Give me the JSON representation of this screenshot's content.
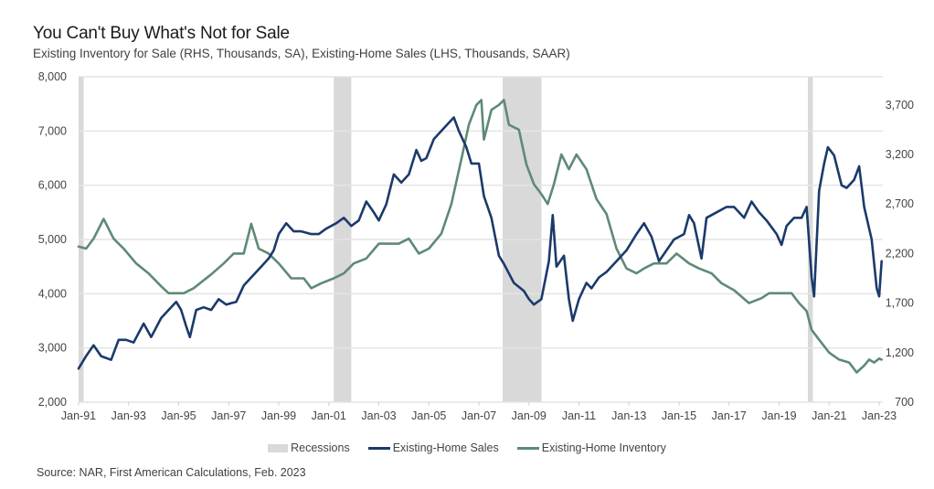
{
  "chart_data": {
    "type": "line",
    "title": "You Can't Buy What's Not for Sale",
    "subtitle": "Existing Inventory for Sale (RHS, Thousands, SA), Existing-Home Sales (LHS, Thousands, SAAR)",
    "source": "Source: NAR, First American Calculations, Feb. 2023",
    "xlabel": "",
    "x_range": [
      1991.0,
      2023.0
    ],
    "x_ticks": [
      {
        "value": 1991,
        "label": "Jan-91"
      },
      {
        "value": 1993,
        "label": "Jan-93"
      },
      {
        "value": 1995,
        "label": "Jan-95"
      },
      {
        "value": 1997,
        "label": "Jan-97"
      },
      {
        "value": 1999,
        "label": "Jan-99"
      },
      {
        "value": 2001,
        "label": "Jan-01"
      },
      {
        "value": 2003,
        "label": "Jan-03"
      },
      {
        "value": 2005,
        "label": "Jan-05"
      },
      {
        "value": 2007,
        "label": "Jan-07"
      },
      {
        "value": 2009,
        "label": "Jan-09"
      },
      {
        "value": 2011,
        "label": "Jan-11"
      },
      {
        "value": 2013,
        "label": "Jan-13"
      },
      {
        "value": 2015,
        "label": "Jan-15"
      },
      {
        "value": 2017,
        "label": "Jan-17"
      },
      {
        "value": 2019,
        "label": "Jan-19"
      },
      {
        "value": 2021,
        "label": "Jan-21"
      },
      {
        "value": 2023,
        "label": "Jan-23"
      }
    ],
    "y_left": {
      "label": "Existing-Home Sales (LHS, Thousands, SAAR)",
      "range": [
        2000,
        8000
      ],
      "ticks": [
        "2,000",
        "3,000",
        "4,000",
        "5,000",
        "6,000",
        "7,000",
        "8,000"
      ],
      "tick_values": [
        2000,
        3000,
        4000,
        5000,
        6000,
        7000,
        8000
      ]
    },
    "y_right": {
      "label": "Existing Inventory for Sale (RHS, Thousands, SA)",
      "range": [
        700,
        3984
      ],
      "ticks": [
        "700",
        "1,200",
        "1,700",
        "2,200",
        "2,700",
        "3,200",
        "3,700"
      ],
      "tick_values": [
        700,
        1200,
        1700,
        2200,
        2700,
        3200,
        3700
      ]
    },
    "grid": true,
    "legend_position": "bottom",
    "legend": [
      "Recessions",
      "Existing-Home Sales",
      "Existing-Home Inventory"
    ],
    "recessions": [
      [
        1991.0,
        1991.2
      ],
      [
        2001.2,
        2001.9
      ],
      [
        2007.95,
        2009.5
      ],
      [
        2020.15,
        2020.35
      ]
    ],
    "colors": {
      "sales": "#1b3a6b",
      "inventory": "#5e8a76",
      "recession": "#d9d9d9",
      "grid": "#e4e4e4"
    },
    "series": [
      {
        "name": "Existing-Home Sales",
        "axis": "left",
        "x": [
          1991.0,
          1991.3,
          1991.6,
          1991.9,
          1992.3,
          1992.6,
          1992.9,
          1993.2,
          1993.6,
          1993.9,
          1994.3,
          1994.6,
          1994.9,
          1995.1,
          1995.3,
          1995.45,
          1995.7,
          1996.0,
          1996.3,
          1996.6,
          1996.9,
          1997.3,
          1997.6,
          1997.9,
          1998.3,
          1998.6,
          1998.8,
          1999.0,
          1999.3,
          1999.6,
          1999.9,
          2000.3,
          2000.6,
          2000.9,
          2001.3,
          2001.6,
          2001.9,
          2002.2,
          2002.5,
          2002.8,
          2003.0,
          2003.3,
          2003.6,
          2003.9,
          2004.2,
          2004.5,
          2004.7,
          2004.9,
          2005.2,
          2005.5,
          2005.8,
          2006.0,
          2006.2,
          2006.5,
          2006.7,
          2007.0,
          2007.2,
          2007.5,
          2007.8,
          2008.0,
          2008.4,
          2008.8,
          2009.0,
          2009.2,
          2009.5,
          2009.8,
          2009.95,
          2010.1,
          2010.4,
          2010.6,
          2010.75,
          2011.0,
          2011.3,
          2011.5,
          2011.8,
          2012.1,
          2012.5,
          2012.9,
          2013.3,
          2013.6,
          2013.9,
          2014.2,
          2014.5,
          2014.8,
          2015.2,
          2015.4,
          2015.6,
          2015.9,
          2016.1,
          2016.5,
          2016.9,
          2017.2,
          2017.6,
          2017.9,
          2018.2,
          2018.5,
          2018.9,
          2019.1,
          2019.3,
          2019.6,
          2019.9,
          2020.1,
          2020.3,
          2020.4,
          2020.6,
          2020.8,
          2020.95,
          2021.2,
          2021.5,
          2021.7,
          2022.0,
          2022.2,
          2022.4,
          2022.7,
          2022.9,
          2023.0,
          2023.1
        ],
        "values": [
          2620,
          2850,
          3050,
          2850,
          2780,
          3150,
          3150,
          3100,
          3450,
          3200,
          3550,
          3700,
          3850,
          3700,
          3400,
          3200,
          3700,
          3750,
          3700,
          3900,
          3800,
          3850,
          4150,
          4300,
          4500,
          4650,
          4800,
          5100,
          5300,
          5150,
          5150,
          5100,
          5100,
          5200,
          5300,
          5400,
          5250,
          5350,
          5700,
          5500,
          5350,
          5650,
          6200,
          6050,
          6200,
          6650,
          6450,
          6500,
          6850,
          7000,
          7150,
          7250,
          7000,
          6700,
          6400,
          6400,
          5800,
          5400,
          4700,
          4550,
          4200,
          4050,
          3900,
          3800,
          3900,
          4600,
          5450,
          4500,
          4700,
          3900,
          3500,
          3900,
          4200,
          4100,
          4300,
          4400,
          4600,
          4800,
          5100,
          5300,
          5050,
          4600,
          4800,
          5000,
          5100,
          5450,
          5300,
          4650,
          5400,
          5500,
          5600,
          5600,
          5400,
          5700,
          5500,
          5350,
          5100,
          4900,
          5250,
          5400,
          5400,
          5600,
          4300,
          3950,
          5900,
          6400,
          6700,
          6550,
          6000,
          5950,
          6100,
          6350,
          5600,
          5000,
          4100,
          3950,
          4600
        ]
      },
      {
        "name": "Existing-Home Inventory",
        "axis": "right",
        "x": [
          1991.0,
          1991.3,
          1991.6,
          1992.0,
          1992.4,
          1992.8,
          1993.3,
          1993.8,
          1994.3,
          1994.6,
          1995.2,
          1995.6,
          1996.3,
          1996.8,
          1997.2,
          1997.6,
          1997.9,
          1998.2,
          1998.6,
          1999.0,
          1999.5,
          2000.0,
          2000.3,
          2000.7,
          2001.2,
          2001.6,
          2002.0,
          2002.5,
          2003.0,
          2003.4,
          2003.8,
          2004.2,
          2004.6,
          2005.0,
          2005.5,
          2005.9,
          2006.3,
          2006.6,
          2006.9,
          2007.1,
          2007.2,
          2007.5,
          2007.8,
          2008.0,
          2008.2,
          2008.6,
          2008.9,
          2009.2,
          2009.5,
          2009.75,
          2010.0,
          2010.3,
          2010.6,
          2010.9,
          2011.3,
          2011.7,
          2012.1,
          2012.5,
          2012.9,
          2013.3,
          2013.6,
          2014.0,
          2014.5,
          2014.9,
          2015.4,
          2015.8,
          2016.3,
          2016.7,
          2017.2,
          2017.8,
          2018.3,
          2018.6,
          2019.1,
          2019.5,
          2019.8,
          2020.1,
          2020.3,
          2020.6,
          2021.0,
          2021.4,
          2021.8,
          2022.1,
          2022.4,
          2022.6,
          2022.8,
          2023.0,
          2023.1
        ],
        "values": [
          2270,
          2250,
          2350,
          2550,
          2350,
          2250,
          2100,
          2000,
          1870,
          1800,
          1800,
          1850,
          1990,
          2100,
          2200,
          2200,
          2500,
          2250,
          2200,
          2100,
          1950,
          1950,
          1850,
          1900,
          1950,
          2000,
          2100,
          2150,
          2300,
          2300,
          2300,
          2350,
          2200,
          2250,
          2400,
          2700,
          3150,
          3500,
          3700,
          3750,
          3350,
          3650,
          3700,
          3750,
          3500,
          3450,
          3100,
          2900,
          2800,
          2700,
          2900,
          3200,
          3050,
          3200,
          3050,
          2750,
          2600,
          2250,
          2050,
          2000,
          2050,
          2100,
          2100,
          2200,
          2100,
          2050,
          2000,
          1900,
          1830,
          1700,
          1750,
          1800,
          1800,
          1800,
          1700,
          1620,
          1430,
          1330,
          1200,
          1130,
          1100,
          1000,
          1070,
          1130,
          1100,
          1140,
          1130
        ]
      }
    ]
  }
}
